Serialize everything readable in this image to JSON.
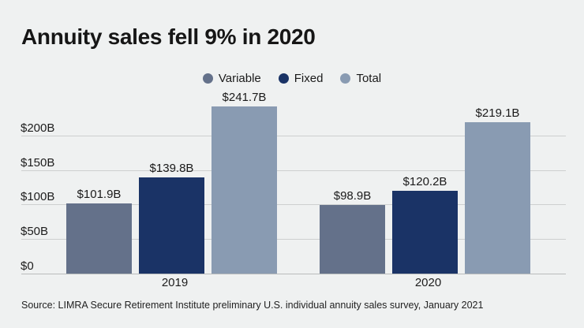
{
  "page": {
    "title": "Annuity sales fell 9% in 2020",
    "source": "Source: LIMRA Secure Retirement Institute preliminary U.S. individual annuity sales survey, January 2021"
  },
  "colors": {
    "background": "#eff1f1",
    "variable": "#64718a",
    "fixed": "#1a3366",
    "total": "#899bb2",
    "gridline": "#cdcfcf",
    "text": "#1a1a1a"
  },
  "chart_data": {
    "type": "bar",
    "title": "Annuity sales fell 9% in 2020",
    "categories": [
      "2019",
      "2020"
    ],
    "series": [
      {
        "name": "Variable",
        "color": "#64718a",
        "values": [
          101.9,
          98.9
        ],
        "labels": [
          "$101.9B",
          "$98.9B"
        ]
      },
      {
        "name": "Fixed",
        "color": "#1a3366",
        "values": [
          139.8,
          120.2
        ],
        "labels": [
          "$139.8B",
          "$120.2B"
        ]
      },
      {
        "name": "Total",
        "color": "#899bb2",
        "values": [
          241.7,
          219.1
        ],
        "labels": [
          "$241.7B",
          "$219.1B"
        ]
      }
    ],
    "xlabel": "",
    "ylabel": "",
    "ylim": [
      0,
      250
    ],
    "yticks": [
      {
        "value": 0,
        "label": "$0"
      },
      {
        "value": 50,
        "label": "$50B"
      },
      {
        "value": 100,
        "label": "$100B"
      },
      {
        "value": 150,
        "label": "$150B"
      },
      {
        "value": 200,
        "label": "$200B"
      }
    ],
    "grid": true,
    "legend_position": "top-center"
  }
}
